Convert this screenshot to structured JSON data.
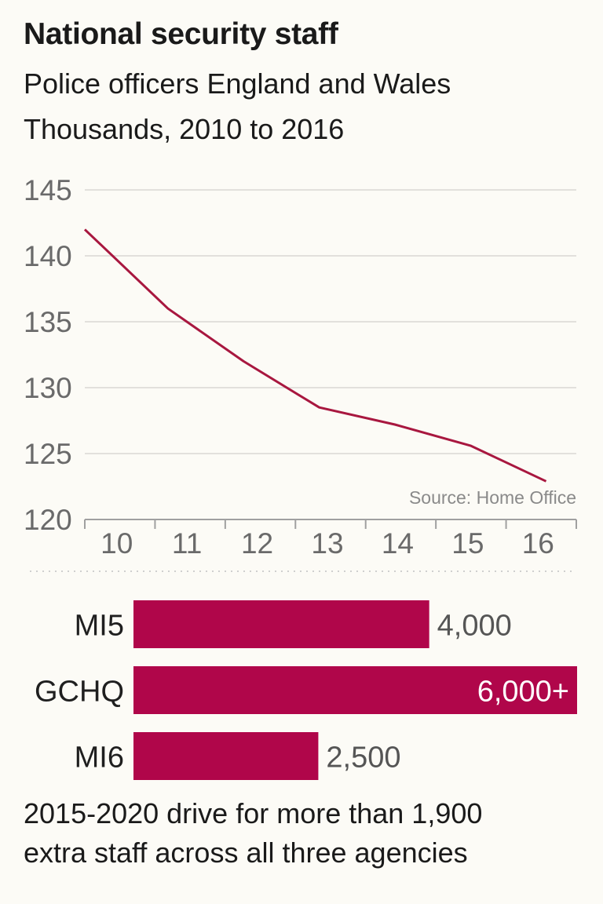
{
  "header": {
    "title": "National security staff",
    "subtitle_line1": "Police officers England and Wales",
    "subtitle_line2": "Thousands, 2010 to 2016"
  },
  "source": "Source: Home Office",
  "footnote": {
    "line1": "2015-2020 drive for more than 1,900",
    "line2": "extra staff across all three agencies"
  },
  "colors": {
    "line": "#a8173f",
    "bar": "#b0064a",
    "grid": "#e2e0dc",
    "axis": "#a0a0a0"
  },
  "chart_data": [
    {
      "type": "line",
      "title": "Police officers England and Wales",
      "subtitle": "Thousands, 2010 to 2016",
      "x": [
        2010,
        2011,
        2012,
        2013,
        2014,
        2015,
        2016
      ],
      "x_tick_labels": [
        "10",
        "11",
        "12",
        "13",
        "14",
        "15",
        "16"
      ],
      "series": [
        {
          "name": "Police officers",
          "x": [
            2010.0,
            2011.1,
            2012.1,
            2013.1,
            2014.1,
            2015.1,
            2016.1
          ],
          "values": [
            142,
            136,
            132,
            128.5,
            127.2,
            125.6,
            122.9
          ]
        }
      ],
      "ylim": [
        120,
        145
      ],
      "y_ticks": [
        120,
        125,
        130,
        135,
        140,
        145
      ],
      "grid": true,
      "source": "Source: Home Office"
    },
    {
      "type": "bar",
      "orientation": "horizontal",
      "categories": [
        "MI5",
        "GCHQ",
        "MI6"
      ],
      "values": [
        4000,
        6000,
        2500
      ],
      "value_labels": [
        "4,000",
        "6,000+",
        "2,500"
      ],
      "xlim": [
        0,
        6000
      ]
    }
  ]
}
